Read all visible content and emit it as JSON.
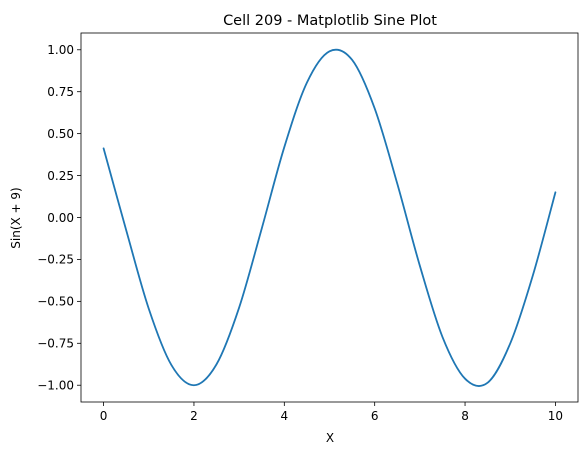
{
  "chart_data": {
    "type": "line",
    "title": "Cell 209 - Matplotlib Sine Plot",
    "xlabel": "X",
    "ylabel": "Sin(X + 9)",
    "xlim": [
      -0.5,
      10.5
    ],
    "ylim": [
      -1.1,
      1.1
    ],
    "grid": false,
    "x_ticks": [
      0,
      2,
      4,
      6,
      8,
      10
    ],
    "x_tick_labels": [
      "0",
      "2",
      "4",
      "6",
      "8",
      "10"
    ],
    "y_ticks": [
      1.0,
      0.75,
      0.5,
      0.25,
      0.0,
      -0.25,
      -0.5,
      -0.75,
      -1.0
    ],
    "y_tick_labels": [
      "1.00",
      "0.75",
      "0.50",
      "0.25",
      "0.00",
      "−0.25",
      "−0.50",
      "−0.75",
      "−1.00"
    ],
    "series": [
      {
        "color": "#1f77b4",
        "x": [
          0,
          0.5,
          1,
          1.5,
          2,
          2.5,
          3,
          3.5,
          4,
          4.5,
          5,
          5.5,
          6,
          6.5,
          7,
          7.5,
          8,
          8.5,
          9,
          9.5,
          10
        ],
        "y": [
          0.412,
          -0.075,
          -0.544,
          -0.879,
          -1.0,
          -0.875,
          -0.537,
          -0.066,
          0.42,
          0.804,
          0.991,
          0.94,
          0.65,
          0.202,
          -0.288,
          -0.712,
          -0.961,
          -0.985,
          -0.751,
          -0.346,
          0.15
        ]
      }
    ]
  }
}
